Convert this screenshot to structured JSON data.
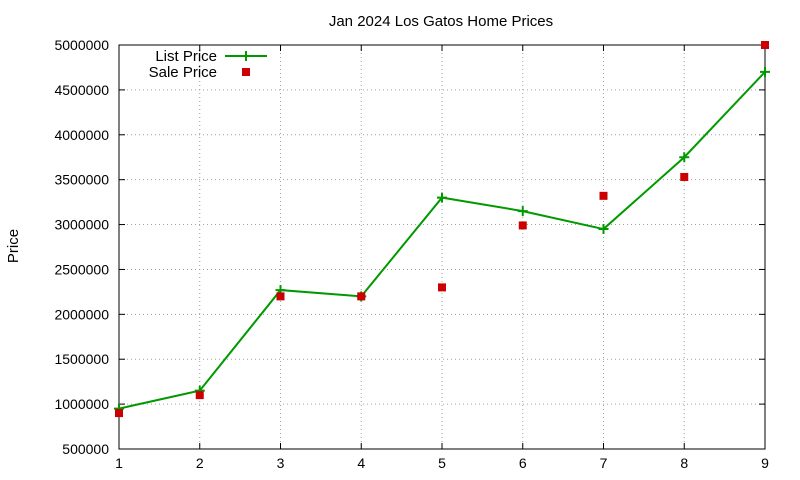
{
  "chart_data": {
    "type": "line",
    "title": "Jan 2024 Los Gatos Home Prices",
    "xlabel": "",
    "ylabel": "Price",
    "x": [
      1,
      2,
      3,
      4,
      5,
      6,
      7,
      8,
      9
    ],
    "xlim": [
      1,
      9
    ],
    "ylim": [
      500000,
      5000000
    ],
    "xticks": [
      "1",
      "2",
      "3",
      "4",
      "5",
      "6",
      "7",
      "8",
      "9"
    ],
    "yticks": [
      "500000",
      "1000000",
      "1500000",
      "2000000",
      "2500000",
      "3000000",
      "3500000",
      "4000000",
      "4500000",
      "5000000"
    ],
    "grid": true,
    "legend_position": "top-left",
    "series": [
      {
        "name": "List Price",
        "style": "line-with-plus-markers",
        "color": "#009900",
        "values": [
          950000,
          1150000,
          2270000,
          2200000,
          3300000,
          3150000,
          2950000,
          3750000,
          4700000
        ]
      },
      {
        "name": "Sale Price",
        "style": "square-markers",
        "color": "#cc0000",
        "values": [
          900000,
          1100000,
          2200000,
          2200000,
          2300000,
          2990000,
          3320000,
          3530000,
          5000000
        ]
      }
    ]
  }
}
